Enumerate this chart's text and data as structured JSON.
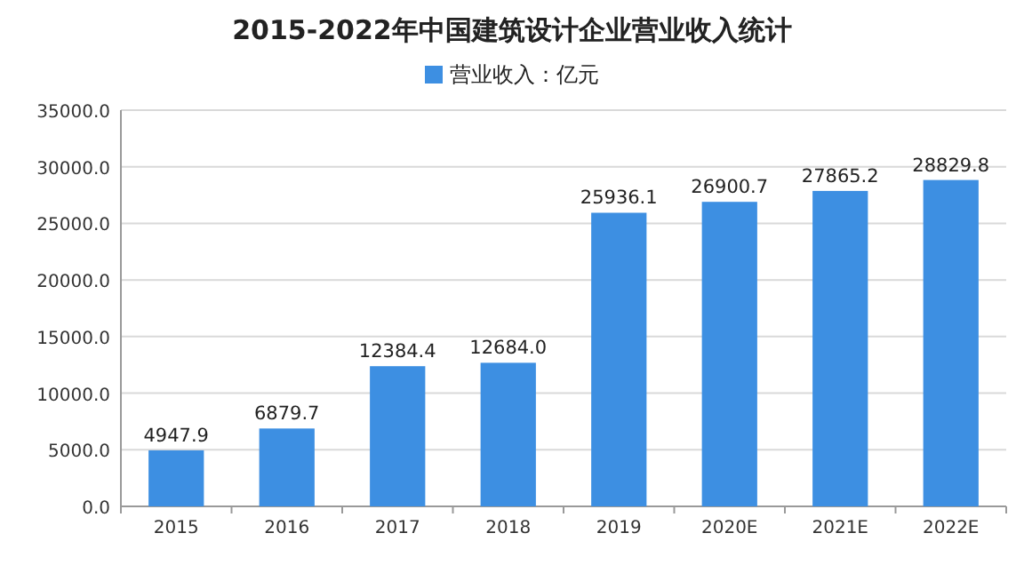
{
  "chart_data": {
    "type": "bar",
    "title": "2015-2022年中国建筑设计企业营业收入统计",
    "categories": [
      "2015",
      "2016",
      "2017",
      "2018",
      "2019",
      "2020E",
      "2021E",
      "2022E"
    ],
    "series": [
      {
        "name": "营业收入：亿元",
        "color": "#3d8fe2",
        "values": [
          4947.9,
          6879.7,
          12384.4,
          12684.0,
          25936.1,
          26900.7,
          27865.2,
          28829.8
        ]
      }
    ],
    "value_labels": [
      "4947.9",
      "6879.7",
      "12384.4",
      "12684.0",
      "25936.1",
      "26900.7",
      "27865.2",
      "28829.8"
    ],
    "ylim": [
      0,
      35000
    ],
    "yticks": [
      {
        "value": 0,
        "label": "0.0"
      },
      {
        "value": 5000,
        "label": "5000.0"
      },
      {
        "value": 10000,
        "label": "10000.0"
      },
      {
        "value": 15000,
        "label": "15000.0"
      },
      {
        "value": 20000,
        "label": "20000.0"
      },
      {
        "value": 25000,
        "label": "25000.0"
      },
      {
        "value": 30000,
        "label": "30000.0"
      },
      {
        "value": 35000,
        "label": "35000.0"
      }
    ],
    "grid": "y",
    "legend": "top"
  }
}
